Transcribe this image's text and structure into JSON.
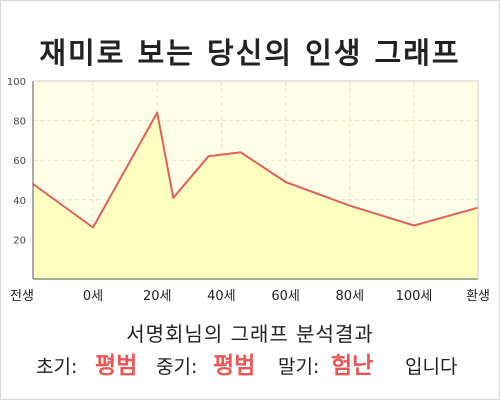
{
  "title": "재미로 보는 당신의 인생 그래프",
  "caption": "서명회님의 그래프 분석결과",
  "result": {
    "early_label": "초기:",
    "early_value": "평범",
    "mid_label": "중기:",
    "mid_value": "평범",
    "late_label": "말기:",
    "late_value": "험난",
    "ending": "입니다"
  },
  "colors": {
    "line": "#e06060",
    "fill": "#ffffc0",
    "plot_bg": "#ffffe8",
    "accent": "#ee5555"
  },
  "chart_data": {
    "type": "area",
    "title": "",
    "xlabel": "",
    "ylabel": "",
    "ylim": [
      0,
      100
    ],
    "yticks": [
      20,
      40,
      60,
      80,
      100
    ],
    "x_ticks": [
      "전생",
      "0세",
      "20세",
      "40세",
      "60세",
      "80세",
      "100세",
      "환생"
    ],
    "grid": true,
    "series": [
      {
        "points": [
          {
            "x": "전생",
            "y": 48
          },
          {
            "x": "0세",
            "y": 26
          },
          {
            "x": "20세",
            "y": 84
          },
          {
            "x": "25세",
            "y": 41
          },
          {
            "x": "36세",
            "y": 62
          },
          {
            "x": "46세",
            "y": 64
          },
          {
            "x": "60세",
            "y": 49
          },
          {
            "x": "80세",
            "y": 37
          },
          {
            "x": "100세",
            "y": 27
          },
          {
            "x": "환생",
            "y": 36
          }
        ]
      }
    ]
  }
}
